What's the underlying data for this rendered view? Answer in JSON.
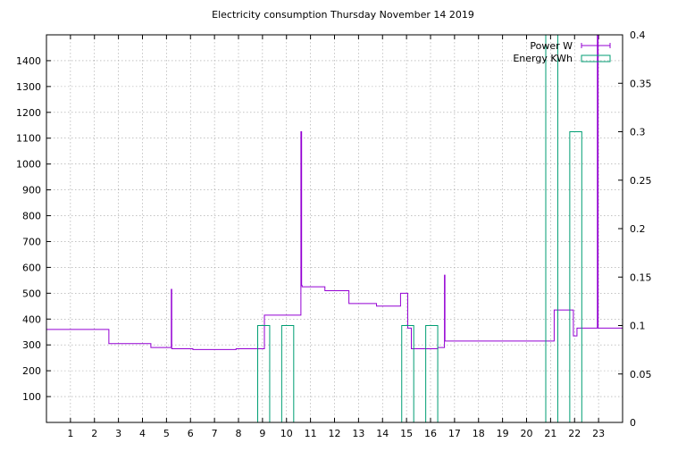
{
  "chart_data": {
    "type": "line",
    "title": "Electricity consumption Thursday November 14 2019",
    "xlabel": "",
    "ylabel": "",
    "xlim": [
      0,
      24
    ],
    "xticks": [
      1,
      2,
      3,
      4,
      5,
      6,
      7,
      8,
      9,
      10,
      11,
      12,
      13,
      14,
      15,
      16,
      17,
      18,
      19,
      20,
      21,
      22,
      23
    ],
    "ylim_left": [
      0,
      1500
    ],
    "yticks_left": [
      100,
      200,
      300,
      400,
      500,
      600,
      700,
      800,
      900,
      1000,
      1100,
      1200,
      1300,
      1400
    ],
    "ylim_right": [
      0,
      0.4
    ],
    "yticks_right": [
      0,
      0.05,
      0.1,
      0.15,
      0.2,
      0.25,
      0.3,
      0.35,
      0.4
    ],
    "grid": true,
    "legend_position": "top-right",
    "colors": {
      "power": "#9400d3",
      "energy": "#009e73"
    },
    "series": [
      {
        "name": "Power W",
        "axis": "left",
        "style": "steps",
        "x": [
          0,
          2.6,
          2.6,
          4.35,
          4.35,
          5.2,
          5.2,
          5.22,
          5.22,
          5.25,
          5.25,
          6.1,
          6.1,
          7.9,
          7.9,
          9.08,
          9.08,
          10.6,
          10.6,
          10.63,
          10.63,
          10.65,
          10.65,
          10.68,
          10.68,
          11.6,
          11.6,
          12.6,
          12.6,
          13.75,
          13.75,
          14.75,
          14.75,
          15.05,
          15.05,
          15.2,
          15.2,
          16.3,
          16.3,
          16.58,
          16.58,
          16.6,
          16.6,
          16.62,
          16.62,
          21.15,
          21.15,
          21.95,
          21.95,
          22.1,
          22.1,
          22.3,
          22.3,
          22.95,
          22.95,
          22.98,
          22.98,
          24
        ],
        "y": [
          360,
          360,
          305,
          305,
          290,
          290,
          515,
          515,
          285,
          285,
          285,
          285,
          282,
          282,
          285,
          285,
          415,
          415,
          1125,
          1125,
          530,
          530,
          525,
          525,
          525,
          525,
          510,
          510,
          460,
          460,
          450,
          450,
          500,
          500,
          365,
          365,
          285,
          285,
          290,
          290,
          570,
          570,
          315,
          315,
          315,
          315,
          435,
          435,
          335,
          335,
          365,
          365,
          365,
          365,
          1500,
          1500,
          365,
          365
        ]
      },
      {
        "name": "Energy KWh",
        "axis": "right",
        "style": "boxes",
        "bars": [
          {
            "x0": 8.8,
            "x1": 9.3,
            "value": 0.1
          },
          {
            "x0": 9.8,
            "x1": 10.3,
            "value": 0.1
          },
          {
            "x0": 14.8,
            "x1": 15.3,
            "value": 0.1
          },
          {
            "x0": 15.8,
            "x1": 16.3,
            "value": 0.1
          },
          {
            "x0": 20.8,
            "x1": 21.3,
            "value": 0.4
          },
          {
            "x0": 21.8,
            "x1": 22.3,
            "value": 0.3
          }
        ]
      }
    ]
  }
}
